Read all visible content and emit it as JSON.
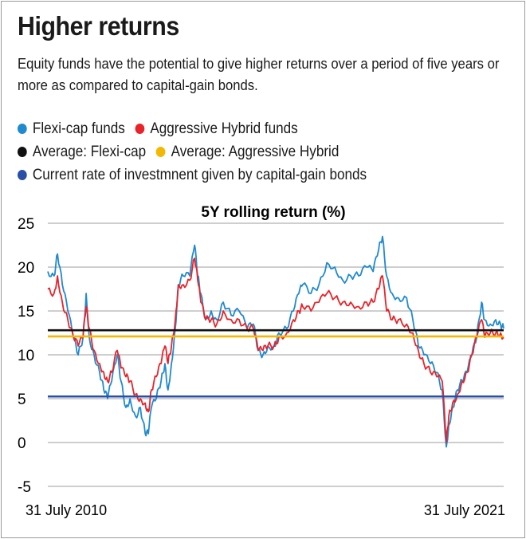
{
  "header": {
    "title": "Higher returns",
    "subtitle": "Equity funds have the potential to give higher returns over a period of five years or more as compared to capital-gain bonds."
  },
  "chart_data": {
    "type": "line",
    "title": "5Y rolling return (%)",
    "xlabel": "",
    "ylabel": "",
    "x_unit": "months since 31 July 2010",
    "x_tick_labels": [
      "31 July 2010",
      "31 July 2021"
    ],
    "xlim": [
      0,
      132
    ],
    "ylim": [
      -5,
      25
    ],
    "yticks": [
      25,
      20,
      15,
      10,
      5,
      0,
      -5
    ],
    "grid": true,
    "legend_placement": "top-left, above chart",
    "x": [
      0,
      1.8,
      2.8,
      4.2,
      5.8,
      7.4,
      8.8,
      10.2,
      11.1,
      12,
      13.4,
      15,
      16.2,
      17.3,
      18.5,
      20.1,
      21.2,
      22.6,
      23.8,
      25.4,
      26.8,
      28.2,
      29.1,
      30,
      31.4,
      32.8,
      33.9,
      34.8,
      35.8,
      36.9,
      37.8,
      39.2,
      41.1,
      42.5,
      43.4,
      44.3,
      45.7,
      47.3,
      48.9,
      50.8,
      53.1,
      55.4,
      57.7,
      59.5,
      60.9,
      62.3,
      63.7,
      65.5,
      66.9,
      69.2,
      71.1,
      72.7,
      73.8,
      76.2,
      78.5,
      80.8,
      83.1,
      85.4,
      87.7,
      90,
      92.3,
      94.2,
      95.8,
      96.9,
      98.1,
      99.7,
      101.5,
      103.9,
      105.7,
      107.3,
      108.9,
      110.8,
      112.6,
      114.2,
      115.4,
      116.1,
      117.2,
      118.6,
      120,
      121.4,
      122.8,
      124.2,
      125.6,
      126.5,
      128.1,
      129.7,
      131.1,
      132
    ],
    "series": [
      {
        "name": "Flexi-cap funds",
        "color": "#1f8ad0",
        "values": [
          19.5,
          19,
          21.5,
          18,
          15,
          12,
          10,
          12,
          17,
          12,
          10,
          8,
          6,
          5,
          7,
          10,
          7,
          4,
          5,
          3,
          4,
          1,
          1,
          4,
          5,
          7,
          9,
          6,
          9,
          13,
          18,
          19,
          19,
          22.5,
          19,
          17,
          14,
          15,
          14,
          16,
          14.5,
          15,
          13,
          13.5,
          10.5,
          10,
          11,
          11,
          12.5,
          13,
          15,
          17,
          18,
          17,
          18,
          20.5,
          20,
          18.5,
          19,
          19,
          20,
          19.5,
          22,
          23.5,
          19,
          17,
          16.5,
          16.5,
          14,
          11,
          10,
          9,
          8,
          6,
          -0.5,
          2,
          4,
          6,
          7,
          8,
          10,
          12,
          16,
          14,
          13.5,
          14,
          13.5,
          13
        ]
      },
      {
        "name": "Aggressive Hybrid funds",
        "color": "#e8232a",
        "values": [
          17.5,
          17,
          19,
          16,
          14,
          12,
          11,
          12,
          15.5,
          13,
          10.5,
          9,
          8,
          7,
          8,
          10.5,
          8.5,
          7.5,
          7,
          5.5,
          5,
          4.5,
          3.5,
          6,
          7.5,
          9,
          11,
          9,
          11,
          14,
          18,
          18,
          18.5,
          21,
          18.5,
          16,
          14,
          14,
          13.5,
          15,
          14,
          14,
          13,
          13,
          10.5,
          10.5,
          11,
          11,
          12,
          12.5,
          14,
          15,
          15.5,
          15,
          16,
          17,
          16.5,
          16,
          16,
          15.5,
          16,
          16,
          17.5,
          19,
          15,
          14,
          14,
          13.5,
          12.5,
          10.5,
          9,
          8,
          7.5,
          7,
          0,
          3,
          4.5,
          5.5,
          7,
          8,
          10,
          12,
          14,
          12,
          12.5,
          12.5,
          12.5,
          12
        ]
      }
    ],
    "reference_lines": [
      {
        "name": "Average: Flexi-cap",
        "color": "#111111",
        "value": 12.8
      },
      {
        "name": "Average: Aggressive Hybrid",
        "color": "#f5b800",
        "value": 12.1
      },
      {
        "name": "Current rate of investmnent given by capital-gain bonds",
        "color": "#2a4fa8",
        "value": 5.25
      }
    ]
  }
}
